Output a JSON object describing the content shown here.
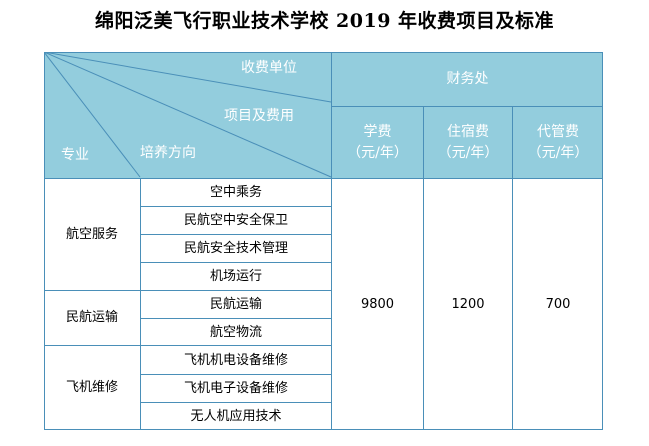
{
  "title": "绵阳泛美飞行职业技术学校 2019 年收费项目及标准",
  "header": {
    "unit_label": "收费单位",
    "item_label": "项目及费用",
    "major_label": "专业",
    "direction_label": "培养方向",
    "office": "财务处",
    "fee_columns": [
      {
        "name": "学费",
        "unit": "（元/年）"
      },
      {
        "name": "住宿费",
        "unit": "（元/年）"
      },
      {
        "name": "代管费",
        "unit": "（元/年）"
      }
    ]
  },
  "majors": [
    {
      "name": "航空服务",
      "directions": [
        "空中乘务",
        "民航空中安全保卫",
        "民航安全技术管理",
        "机场运行"
      ]
    },
    {
      "name": "民航运输",
      "directions": [
        "民航运输",
        "航空物流"
      ]
    },
    {
      "name": "飞机维修",
      "directions": [
        "飞机机电设备维修",
        "飞机电子设备维修",
        "无人机应用技术"
      ]
    }
  ],
  "fees": {
    "tuition": "9800",
    "accommodation": "1200",
    "custody": "700"
  }
}
